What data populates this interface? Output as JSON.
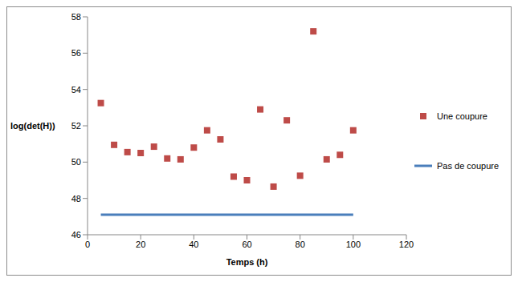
{
  "chart_data": {
    "type": "scatter",
    "x_label": "Temps (h)",
    "y_label": "log(det(H))",
    "x": [
      5,
      10,
      15,
      20,
      25,
      30,
      35,
      40,
      45,
      50,
      55,
      60,
      65,
      70,
      75,
      80,
      85,
      90,
      95,
      100
    ],
    "xlim": [
      0,
      120
    ],
    "xticks": [
      0,
      20,
      40,
      60,
      80,
      100,
      120
    ],
    "ylim": [
      46,
      58
    ],
    "yticks": [
      46,
      48,
      50,
      52,
      54,
      56,
      58
    ],
    "grid": false,
    "legend": "right",
    "series": [
      {
        "name": "Une coupure",
        "type": "scatter",
        "marker": "square",
        "color": "#be4b48",
        "values": [
          53.25,
          50.95,
          50.55,
          50.5,
          50.85,
          50.2,
          50.15,
          50.8,
          51.75,
          51.25,
          49.2,
          49.0,
          52.9,
          48.65,
          52.3,
          49.25,
          57.2,
          50.15,
          50.4,
          51.75
        ]
      },
      {
        "name": "Pas de coupure",
        "type": "line",
        "line_style": "solid",
        "color": "#4a7ebb",
        "x": [
          5,
          100
        ],
        "values": [
          47.1,
          47.1
        ]
      }
    ]
  }
}
